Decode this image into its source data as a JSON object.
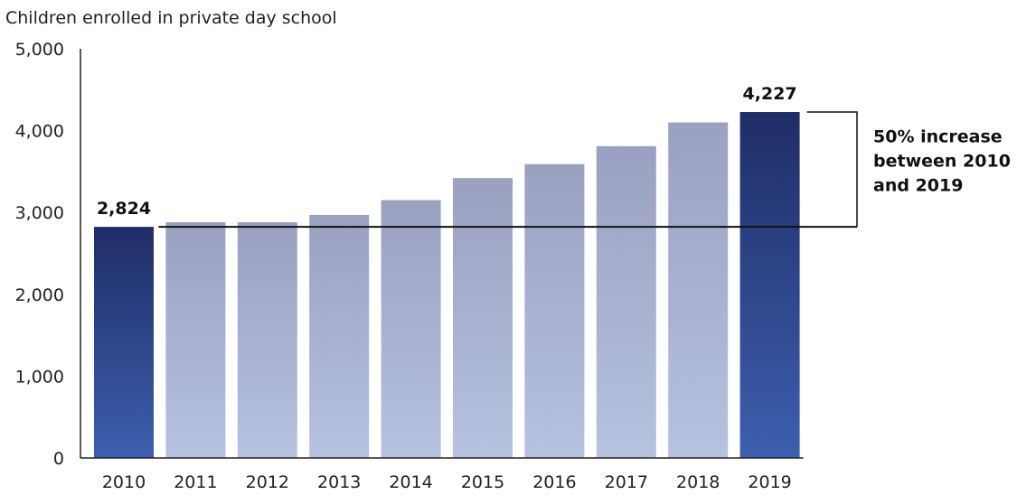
{
  "chart_data": {
    "type": "bar",
    "title": "",
    "ylabel": "Children enrolled in private day school",
    "xlabel": "",
    "categories": [
      "2010",
      "2011",
      "2012",
      "2013",
      "2014",
      "2015",
      "2016",
      "2017",
      "2018",
      "2019"
    ],
    "values": [
      2824,
      2880,
      2880,
      2970,
      3150,
      3420,
      3590,
      3810,
      4100,
      4227
    ],
    "ylim": [
      0,
      5000
    ],
    "yticks": [
      "0",
      "1,000",
      "2,000",
      "3,000",
      "4,000",
      "5,000"
    ],
    "grid": false,
    "legend": "none",
    "data_labels": [
      {
        "category": "2010",
        "text": "2,824"
      },
      {
        "category": "2019",
        "text": "4,227"
      }
    ],
    "annotation": {
      "lines": [
        "50% increase",
        "between 2010",
        "and 2019"
      ],
      "from_value": 2824,
      "to_value": 4227
    },
    "colors": {
      "highlight_top": "#1f2d66",
      "highlight_bottom": "#3d5fae",
      "normal_top": "#9aa1c0",
      "normal_bottom": "#b6c2df",
      "axis": "#222222",
      "reference_line": "#111111"
    }
  }
}
